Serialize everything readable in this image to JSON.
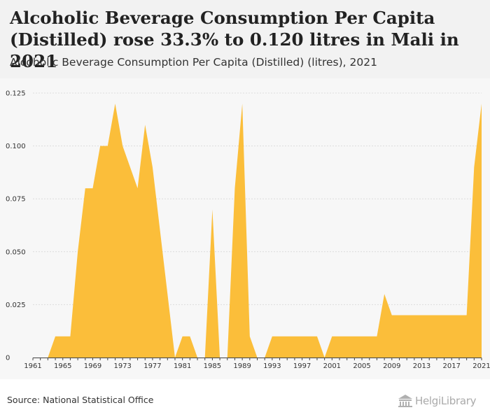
{
  "header": {
    "title": "Alcoholic Beverage Consumption Per Capita (Distilled) rose 33.3% to 0.120 litres in Mali in 2021",
    "subtitle": "Alcoholic Beverage Consumption Per Capita (Distilled) (litres), 2021"
  },
  "footer": {
    "source": "Source: National Statistical Office",
    "brand": "HelgiLibrary"
  },
  "colors": {
    "area": "#fbbe3a",
    "grid": "#dcdcdc",
    "axis": "#444444"
  },
  "chart_data": {
    "type": "area",
    "title": "Alcoholic Beverage Consumption Per Capita (Distilled) (litres), 2021",
    "xlabel": "",
    "ylabel": "",
    "x": [
      1961,
      1962,
      1963,
      1964,
      1965,
      1966,
      1967,
      1968,
      1969,
      1970,
      1971,
      1972,
      1973,
      1974,
      1975,
      1976,
      1977,
      1978,
      1979,
      1980,
      1981,
      1982,
      1983,
      1984,
      1985,
      1986,
      1987,
      1988,
      1989,
      1990,
      1991,
      1992,
      1993,
      1994,
      1995,
      1996,
      1997,
      1998,
      1999,
      2000,
      2001,
      2002,
      2003,
      2004,
      2005,
      2006,
      2007,
      2008,
      2009,
      2010,
      2011,
      2012,
      2013,
      2014,
      2015,
      2016,
      2017,
      2018,
      2019,
      2020,
      2021
    ],
    "values": [
      0,
      0,
      0,
      0.01,
      0.01,
      0.01,
      0.05,
      0.08,
      0.08,
      0.1,
      0.1,
      0.12,
      0.1,
      0.09,
      0.08,
      0.11,
      0.09,
      0.06,
      0.03,
      0,
      0.01,
      0.01,
      0,
      0,
      0.07,
      0,
      0,
      0.08,
      0.12,
      0.01,
      0,
      0,
      0.01,
      0.01,
      0.01,
      0.01,
      0.01,
      0.01,
      0.01,
      0,
      0.01,
      0.01,
      0.01,
      0.01,
      0.01,
      0.01,
      0.01,
      0.03,
      0.02,
      0.02,
      0.02,
      0.02,
      0.02,
      0.02,
      0.02,
      0.02,
      0.02,
      0.02,
      0.02,
      0.09,
      0.12
    ],
    "ylim": [
      0,
      0.125
    ],
    "yticks": [
      "0",
      "0.025",
      "0.050",
      "0.075",
      "0.100",
      "0.125"
    ],
    "ytick_values": [
      0,
      0.025,
      0.05,
      0.075,
      0.1,
      0.125
    ],
    "xticks": [
      "1961",
      "1965",
      "1969",
      "1973",
      "1977",
      "1981",
      "1985",
      "1989",
      "1993",
      "1997",
      "2001",
      "2005",
      "2009",
      "2013",
      "2017",
      "2021"
    ],
    "xtick_values": [
      1961,
      1965,
      1969,
      1973,
      1977,
      1981,
      1985,
      1989,
      1993,
      1997,
      2001,
      2005,
      2009,
      2013,
      2017,
      2021
    ],
    "grid": true,
    "legend": "none"
  }
}
